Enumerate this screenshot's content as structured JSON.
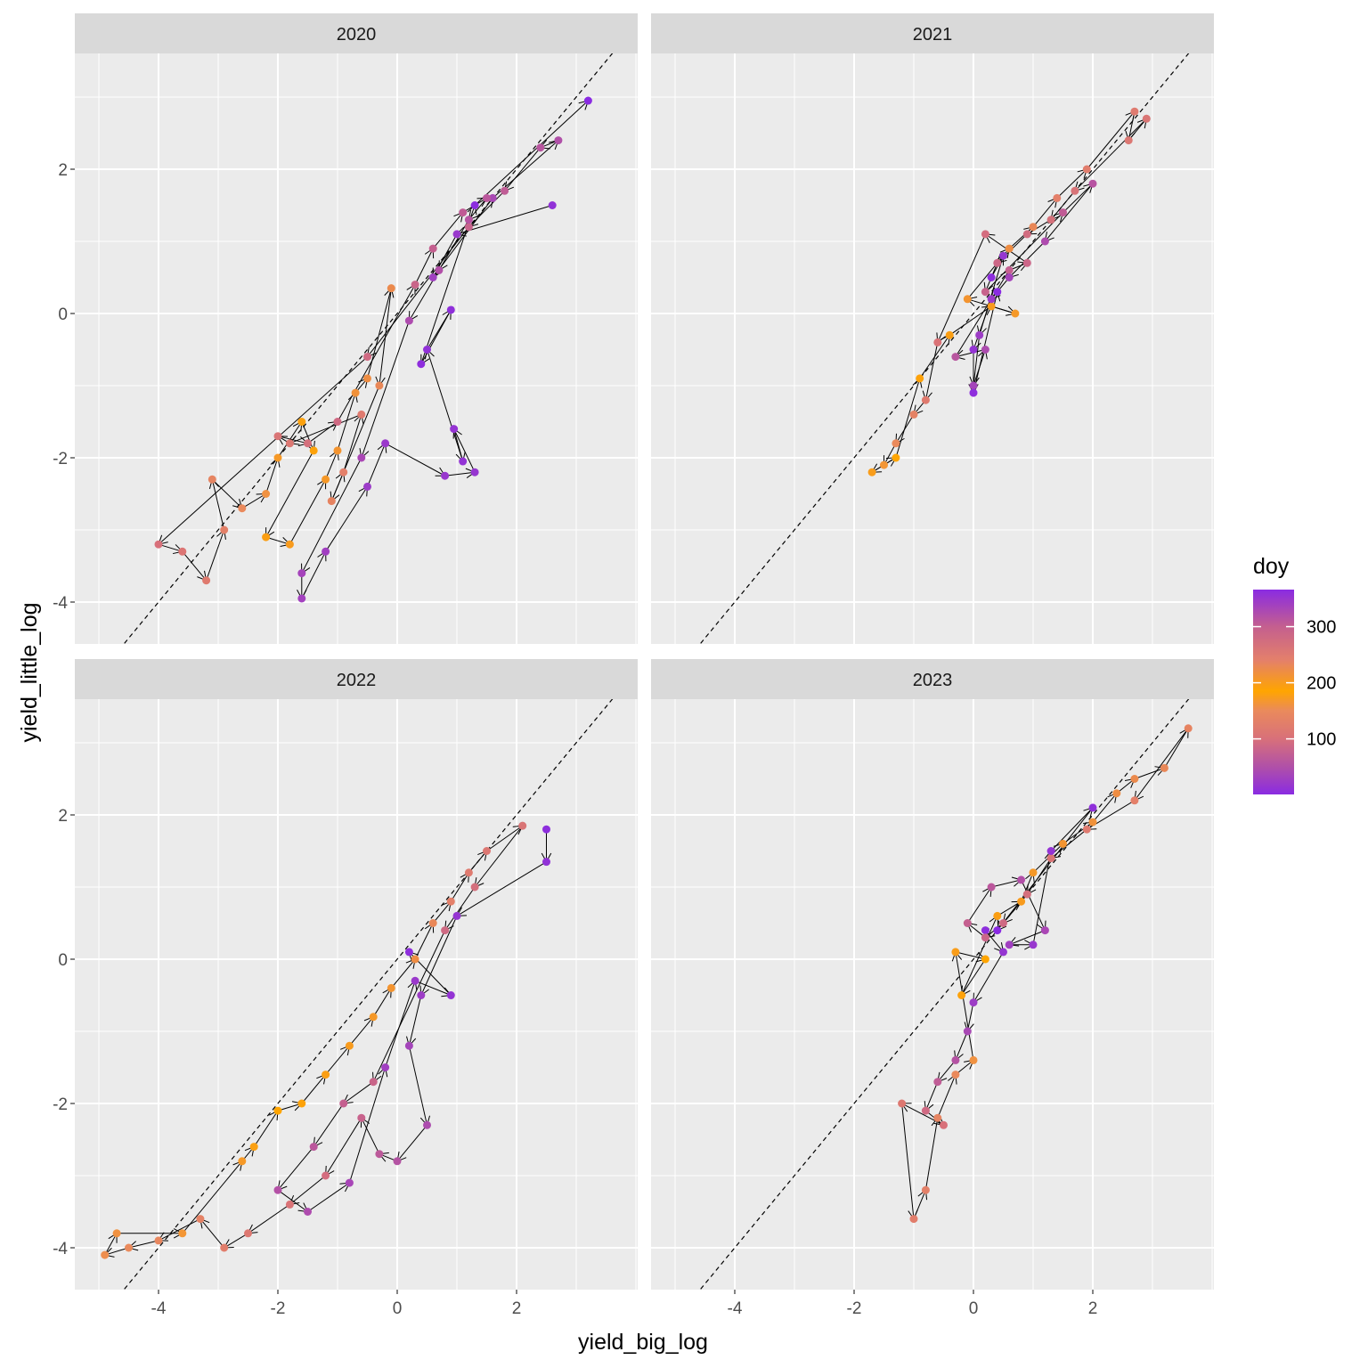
{
  "chart_data": {
    "type": "scatter",
    "facet_var": "year",
    "xlabel": "yield_big_log",
    "ylabel": "yield_little_log",
    "xlim": [
      -5.4,
      4.03
    ],
    "ylim": [
      -4.58,
      3.6
    ],
    "x_ticks": [
      -4,
      -2,
      0,
      2
    ],
    "y_ticks": [
      -4,
      -2,
      0,
      2
    ],
    "reference_line": {
      "type": "identity",
      "style": "dashed"
    },
    "connected_with_arrows": true,
    "legend": {
      "title": "doy",
      "position": "right",
      "ticks": [
        100,
        200,
        300
      ],
      "limits": [
        1,
        366
      ],
      "color_stops": [
        {
          "doy": 1,
          "color": "#8a2be2"
        },
        {
          "doy": 50,
          "color": "#b050a8"
        },
        {
          "doy": 100,
          "color": "#d8707a"
        },
        {
          "doy": 150,
          "color": "#ea8a5c"
        },
        {
          "doy": 185,
          "color": "#ffa500"
        },
        {
          "doy": 240,
          "color": "#e4806a"
        },
        {
          "doy": 300,
          "color": "#c45f8f"
        },
        {
          "doy": 366,
          "color": "#8a2be2"
        }
      ]
    },
    "point_fields": [
      "x",
      "y",
      "doy"
    ],
    "panels": [
      {
        "title": "2020",
        "points": [
          [
            2.6,
            1.5,
            10
          ],
          [
            1.0,
            1.1,
            20
          ],
          [
            0.6,
            0.5,
            30
          ],
          [
            1.6,
            1.6,
            40
          ],
          [
            2.7,
            2.4,
            50
          ],
          [
            2.4,
            2.3,
            60
          ],
          [
            1.8,
            1.7,
            70
          ],
          [
            1.2,
            1.2,
            80
          ],
          [
            -0.5,
            -0.6,
            90
          ],
          [
            -4.0,
            -3.2,
            100
          ],
          [
            -3.6,
            -3.3,
            110
          ],
          [
            -3.2,
            -3.7,
            120
          ],
          [
            -2.9,
            -3.0,
            130
          ],
          [
            -3.1,
            -2.3,
            140
          ],
          [
            -2.6,
            -2.7,
            150
          ],
          [
            -2.2,
            -2.5,
            160
          ],
          [
            -2.0,
            -2.0,
            170
          ],
          [
            -1.6,
            -1.5,
            180
          ],
          [
            -1.4,
            -1.9,
            190
          ],
          [
            -2.2,
            -3.1,
            195
          ],
          [
            -1.8,
            -3.2,
            200
          ],
          [
            -1.2,
            -2.3,
            205
          ],
          [
            -1.0,
            -1.9,
            210
          ],
          [
            -0.7,
            -1.1,
            215
          ],
          [
            -0.5,
            -0.9,
            220
          ],
          [
            -0.1,
            0.35,
            225
          ],
          [
            -0.3,
            -1.0,
            230
          ],
          [
            -1.1,
            -2.6,
            235
          ],
          [
            -0.9,
            -2.2,
            240
          ],
          [
            -0.6,
            -1.4,
            250
          ],
          [
            -1.8,
            -1.8,
            255
          ],
          [
            -2.0,
            -1.7,
            260
          ],
          [
            -1.5,
            -1.8,
            270
          ],
          [
            -1.0,
            -1.5,
            280
          ],
          [
            0.3,
            0.4,
            290
          ],
          [
            0.6,
            0.9,
            300
          ],
          [
            1.1,
            1.4,
            305
          ],
          [
            1.5,
            1.6,
            310
          ],
          [
            1.2,
            1.3,
            315
          ],
          [
            0.7,
            0.6,
            320
          ],
          [
            0.2,
            -0.1,
            325
          ],
          [
            -0.6,
            -2.0,
            330
          ],
          [
            -1.6,
            -3.6,
            335
          ],
          [
            -1.6,
            -3.95,
            338
          ],
          [
            -1.2,
            -3.3,
            340
          ],
          [
            -0.5,
            -2.4,
            345
          ],
          [
            -0.2,
            -1.8,
            348
          ],
          [
            0.8,
            -2.25,
            350
          ],
          [
            1.3,
            -2.2,
            352
          ],
          [
            0.95,
            -1.6,
            354
          ],
          [
            1.1,
            -2.05,
            356
          ],
          [
            0.5,
            -0.5,
            358
          ],
          [
            0.9,
            0.05,
            360
          ],
          [
            0.4,
            -0.7,
            362
          ],
          [
            1.3,
            1.5,
            364
          ],
          [
            3.2,
            2.95,
            366
          ]
        ]
      },
      {
        "title": "2021",
        "points": [
          [
            0.3,
            0.5,
            5
          ],
          [
            0.5,
            0.8,
            15
          ],
          [
            0.1,
            -0.3,
            25
          ],
          [
            0.0,
            -1.0,
            35
          ],
          [
            0.2,
            -0.5,
            45
          ],
          [
            -0.3,
            -0.6,
            60
          ],
          [
            0.6,
            0.6,
            75
          ],
          [
            0.9,
            0.7,
            85
          ],
          [
            0.2,
            1.1,
            95
          ],
          [
            -0.6,
            -0.4,
            105
          ],
          [
            -0.8,
            -1.2,
            120
          ],
          [
            -1.0,
            -1.4,
            135
          ],
          [
            -1.3,
            -1.8,
            150
          ],
          [
            -1.5,
            -2.1,
            165
          ],
          [
            -1.7,
            -2.2,
            175
          ],
          [
            -1.3,
            -2.0,
            185
          ],
          [
            -0.9,
            -0.9,
            190
          ],
          [
            -0.4,
            -0.3,
            195
          ],
          [
            0.3,
            0.1,
            200
          ],
          [
            0.7,
            0.0,
            205
          ],
          [
            -0.1,
            0.2,
            210
          ],
          [
            0.6,
            0.9,
            220
          ],
          [
            1.0,
            1.2,
            230
          ],
          [
            1.4,
            1.6,
            240
          ],
          [
            1.9,
            2.0,
            245
          ],
          [
            2.7,
            2.8,
            250
          ],
          [
            2.6,
            2.4,
            255
          ],
          [
            2.9,
            2.7,
            258
          ],
          [
            1.7,
            1.7,
            262
          ],
          [
            1.3,
            1.3,
            268
          ],
          [
            0.9,
            1.1,
            275
          ],
          [
            0.4,
            0.7,
            285
          ],
          [
            0.2,
            0.3,
            295
          ],
          [
            1.5,
            1.4,
            305
          ],
          [
            2.0,
            1.8,
            315
          ],
          [
            1.2,
            1.0,
            325
          ],
          [
            0.6,
            0.5,
            335
          ],
          [
            0.3,
            0.2,
            345
          ],
          [
            0.0,
            -0.5,
            355
          ],
          [
            0.0,
            -1.1,
            362
          ],
          [
            0.4,
            0.3,
            366
          ]
        ]
      },
      {
        "title": "2022",
        "points": [
          [
            2.5,
            1.8,
            5
          ],
          [
            2.5,
            1.35,
            10
          ],
          [
            1.0,
            0.6,
            15
          ],
          [
            0.4,
            -0.5,
            25
          ],
          [
            0.2,
            -1.2,
            35
          ],
          [
            0.5,
            -2.3,
            45
          ],
          [
            0.0,
            -2.8,
            55
          ],
          [
            -0.3,
            -2.7,
            65
          ],
          [
            -0.6,
            -2.2,
            80
          ],
          [
            -1.2,
            -3.0,
            95
          ],
          [
            -1.8,
            -3.4,
            105
          ],
          [
            -2.5,
            -3.8,
            115
          ],
          [
            -2.9,
            -4.0,
            125
          ],
          [
            -3.3,
            -3.6,
            135
          ],
          [
            -4.0,
            -3.9,
            145
          ],
          [
            -4.5,
            -4.0,
            150
          ],
          [
            -4.9,
            -4.1,
            155
          ],
          [
            -4.7,
            -3.8,
            160
          ],
          [
            -3.6,
            -3.8,
            165
          ],
          [
            -2.6,
            -2.8,
            170
          ],
          [
            -2.4,
            -2.6,
            178
          ],
          [
            -2.0,
            -2.1,
            185
          ],
          [
            -1.6,
            -2.0,
            190
          ],
          [
            -1.2,
            -1.6,
            195
          ],
          [
            -0.8,
            -1.2,
            200
          ],
          [
            -0.4,
            -0.8,
            205
          ],
          [
            -0.1,
            -0.4,
            210
          ],
          [
            0.3,
            0.0,
            220
          ],
          [
            0.6,
            0.5,
            230
          ],
          [
            0.9,
            0.8,
            240
          ],
          [
            1.2,
            1.2,
            250
          ],
          [
            1.5,
            1.5,
            255
          ],
          [
            2.1,
            1.85,
            260
          ],
          [
            1.3,
            1.0,
            270
          ],
          [
            0.8,
            0.4,
            280
          ],
          [
            -0.4,
            -1.7,
            290
          ],
          [
            -0.9,
            -2.0,
            300
          ],
          [
            -1.4,
            -2.6,
            310
          ],
          [
            -2.0,
            -3.2,
            318
          ],
          [
            -1.5,
            -3.5,
            325
          ],
          [
            -0.8,
            -3.1,
            332
          ],
          [
            -0.2,
            -1.5,
            340
          ],
          [
            0.3,
            -0.3,
            348
          ],
          [
            0.9,
            -0.5,
            355
          ],
          [
            0.2,
            0.1,
            362
          ]
        ]
      },
      {
        "title": "2023",
        "points": [
          [
            0.2,
            0.4,
            5
          ],
          [
            0.5,
            0.1,
            15
          ],
          [
            0.0,
            -0.6,
            25
          ],
          [
            -0.1,
            -1.0,
            40
          ],
          [
            -0.3,
            -1.4,
            55
          ],
          [
            -0.6,
            -1.7,
            70
          ],
          [
            -0.8,
            -2.1,
            90
          ],
          [
            -0.5,
            -2.3,
            100
          ],
          [
            -1.2,
            -2.0,
            115
          ],
          [
            -1.0,
            -3.6,
            125
          ],
          [
            -0.8,
            -3.2,
            130
          ],
          [
            -0.6,
            -2.2,
            140
          ],
          [
            -0.3,
            -1.6,
            150
          ],
          [
            0.0,
            -1.4,
            160
          ],
          [
            -0.3,
            0.1,
            175
          ],
          [
            0.2,
            0.0,
            185
          ],
          [
            -0.2,
            -0.5,
            190
          ],
          [
            0.4,
            0.6,
            195
          ],
          [
            0.8,
            0.8,
            200
          ],
          [
            1.0,
            1.2,
            205
          ],
          [
            1.5,
            1.6,
            210
          ],
          [
            2.0,
            1.9,
            215
          ],
          [
            2.4,
            2.3,
            220
          ],
          [
            2.7,
            2.5,
            225
          ],
          [
            3.2,
            2.65,
            230
          ],
          [
            3.6,
            3.2,
            235
          ],
          [
            2.7,
            2.2,
            240
          ],
          [
            1.9,
            1.8,
            250
          ],
          [
            1.3,
            1.4,
            260
          ],
          [
            0.9,
            0.9,
            270
          ],
          [
            0.5,
            0.5,
            280
          ],
          [
            0.2,
            0.3,
            290
          ],
          [
            -0.1,
            0.5,
            300
          ],
          [
            0.3,
            1.0,
            310
          ],
          [
            0.8,
            1.1,
            320
          ],
          [
            1.2,
            0.4,
            330
          ],
          [
            0.6,
            0.2,
            340
          ],
          [
            1.0,
            0.2,
            350
          ],
          [
            1.3,
            1.5,
            355
          ],
          [
            2.0,
            2.1,
            360
          ],
          [
            0.4,
            0.4,
            366
          ]
        ]
      }
    ]
  }
}
